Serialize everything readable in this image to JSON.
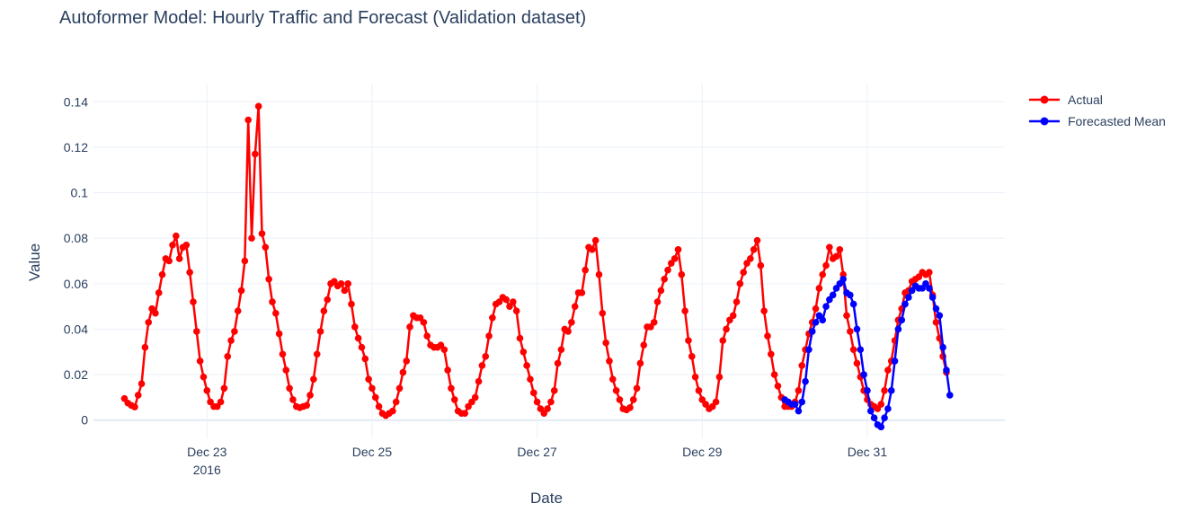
{
  "chart_data": {
    "type": "line",
    "title": "Autoformer Model: Hourly Traffic and Forecast (Validation dataset)",
    "xlabel": "Date",
    "ylabel": "Value",
    "ylim": [
      -0.008,
      0.148
    ],
    "xlim": [
      "2016-12-21 15:00",
      "2017-01-01 16:00"
    ],
    "y_ticks": [
      0,
      0.02,
      0.04,
      0.06,
      0.08,
      0.1,
      0.12,
      0.14
    ],
    "y_tick_labels": [
      "0",
      "0.02",
      "0.04",
      "0.06",
      "0.08",
      "0.1",
      "0.12",
      "0.14"
    ],
    "x_ticks": [
      {
        "date": "2016-12-23",
        "label": "Dec 23",
        "sublabel": "2016"
      },
      {
        "date": "2016-12-25",
        "label": "Dec 25",
        "sublabel": ""
      },
      {
        "date": "2016-12-27",
        "label": "Dec 27",
        "sublabel": ""
      },
      {
        "date": "2016-12-29",
        "label": "Dec 29",
        "sublabel": ""
      },
      {
        "date": "2016-12-31",
        "label": "Dec 31",
        "sublabel": ""
      }
    ],
    "grid": true,
    "legend_position": "top-right",
    "series": [
      {
        "name": "Actual",
        "color": "#ff0000",
        "start": "2016-12-22 00:00",
        "step_hours": 1,
        "values": [
          0.0095,
          0.0075,
          0.0065,
          0.0058,
          0.011,
          0.016,
          0.032,
          0.043,
          0.049,
          0.047,
          0.056,
          0.064,
          0.071,
          0.07,
          0.077,
          0.081,
          0.071,
          0.076,
          0.077,
          0.065,
          0.052,
          0.039,
          0.026,
          0.019,
          0.013,
          0.008,
          0.006,
          0.006,
          0.008,
          0.014,
          0.028,
          0.035,
          0.039,
          0.048,
          0.057,
          0.07,
          0.132,
          0.08,
          0.117,
          0.138,
          0.082,
          0.076,
          0.062,
          0.052,
          0.047,
          0.038,
          0.029,
          0.022,
          0.014,
          0.009,
          0.006,
          0.0055,
          0.006,
          0.0065,
          0.011,
          0.018,
          0.029,
          0.039,
          0.048,
          0.053,
          0.06,
          0.061,
          0.059,
          0.06,
          0.057,
          0.06,
          0.051,
          0.041,
          0.036,
          0.032,
          0.027,
          0.018,
          0.014,
          0.01,
          0.006,
          0.003,
          0.002,
          0.003,
          0.004,
          0.008,
          0.014,
          0.021,
          0.026,
          0.041,
          0.046,
          0.045,
          0.045,
          0.043,
          0.037,
          0.033,
          0.032,
          0.032,
          0.033,
          0.031,
          0.022,
          0.014,
          0.009,
          0.004,
          0.003,
          0.003,
          0.006,
          0.008,
          0.01,
          0.017,
          0.024,
          0.028,
          0.037,
          0.045,
          0.051,
          0.052,
          0.054,
          0.053,
          0.05,
          0.052,
          0.048,
          0.036,
          0.03,
          0.024,
          0.018,
          0.012,
          0.008,
          0.005,
          0.003,
          0.005,
          0.008,
          0.013,
          0.025,
          0.031,
          0.04,
          0.039,
          0.043,
          0.05,
          0.056,
          0.056,
          0.066,
          0.076,
          0.075,
          0.079,
          0.064,
          0.047,
          0.034,
          0.026,
          0.018,
          0.013,
          0.009,
          0.005,
          0.0045,
          0.0055,
          0.009,
          0.014,
          0.025,
          0.033,
          0.041,
          0.041,
          0.043,
          0.052,
          0.057,
          0.062,
          0.066,
          0.069,
          0.071,
          0.075,
          0.064,
          0.048,
          0.035,
          0.028,
          0.019,
          0.013,
          0.009,
          0.007,
          0.005,
          0.006,
          0.008,
          0.019,
          0.035,
          0.04,
          0.044,
          0.046,
          0.052,
          0.06,
          0.065,
          0.069,
          0.071,
          0.075,
          0.079,
          0.068,
          0.048,
          0.037,
          0.029,
          0.02,
          0.015,
          0.01,
          0.006,
          0.006,
          0.006,
          0.008,
          0.013,
          0.024,
          0.031,
          0.038,
          0.043,
          0.049,
          0.058,
          0.064,
          0.068,
          0.076,
          0.071,
          0.072,
          0.075,
          0.064,
          0.046,
          0.039,
          0.031,
          0.025,
          0.019,
          0.013,
          0.009,
          0.007,
          0.006,
          0.005,
          0.007,
          0.013,
          0.022,
          0.026,
          0.035,
          0.044,
          0.049,
          0.056,
          0.057,
          0.061,
          0.062,
          0.063,
          0.065,
          0.064,
          0.065,
          0.055,
          0.043,
          0.036,
          0.028,
          0.021
        ]
      },
      {
        "name": "Forecasted Mean",
        "color": "#0000ff",
        "start": "2016-12-30 00:00",
        "step_hours": 1,
        "values": [
          0.009,
          0.008,
          0.007,
          0.007,
          0.004,
          0.008,
          0.017,
          0.031,
          0.039,
          0.043,
          0.046,
          0.044,
          0.05,
          0.053,
          0.055,
          0.058,
          0.06,
          0.062,
          0.056,
          0.055,
          0.051,
          0.04,
          0.031,
          0.02,
          0.013,
          0.004,
          0.001,
          -0.002,
          -0.003,
          0.001,
          0.005,
          0.013,
          0.026,
          0.04,
          0.044,
          0.051,
          0.054,
          0.057,
          0.059,
          0.058,
          0.058,
          0.06,
          0.058,
          0.054,
          0.049,
          0.046,
          0.032,
          0.022,
          0.011
        ]
      }
    ]
  }
}
